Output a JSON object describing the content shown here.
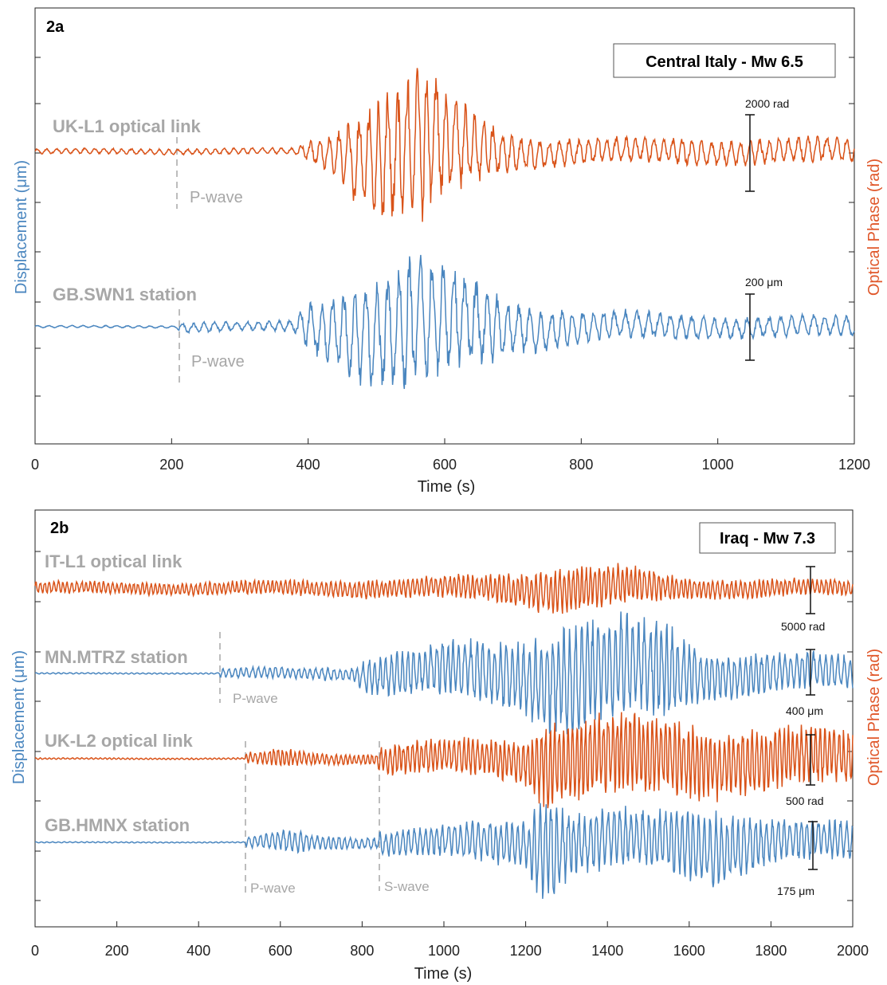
{
  "colors": {
    "optical": "#d95319",
    "station": "#4a86bf",
    "annotation": "#a7a7a7",
    "axis": "#222222"
  },
  "chart_data": [
    {
      "type": "line",
      "panel": "2a",
      "event": "Central Italy - Mw 6.5",
      "xlabel": "Time (s)",
      "ylabel_left": "Displacement (μm)",
      "ylabel_right": "Optical Phase (rad)",
      "xlim": [
        0,
        1200
      ],
      "xticks": [
        "0",
        "200",
        "400",
        "600",
        "800",
        "1000",
        "1200"
      ],
      "series": [
        {
          "name": "UK-L1 optical link",
          "kind": "optical",
          "p_wave": 205,
          "envelope": [
            [
              0,
              0.04
            ],
            [
              380,
              0.05
            ],
            [
              400,
              0.15
            ],
            [
              440,
              0.32
            ],
            [
              470,
              0.7
            ],
            [
              520,
              1.0
            ],
            [
              560,
              1.25
            ],
            [
              600,
              0.85
            ],
            [
              640,
              0.6
            ],
            [
              680,
              0.32
            ],
            [
              750,
              0.22
            ],
            [
              850,
              0.2
            ],
            [
              1000,
              0.2
            ],
            [
              1200,
              0.2
            ]
          ]
        },
        {
          "name": "GB.SWN1 station",
          "kind": "station",
          "p_wave": 210,
          "envelope": [
            [
              0,
              0.02
            ],
            [
              208,
              0.02
            ],
            [
              212,
              0.1
            ],
            [
              300,
              0.08
            ],
            [
              380,
              0.1
            ],
            [
              400,
              0.45
            ],
            [
              440,
              0.6
            ],
            [
              470,
              0.8
            ],
            [
              520,
              1.05
            ],
            [
              560,
              1.15
            ],
            [
              600,
              0.95
            ],
            [
              640,
              0.8
            ],
            [
              700,
              0.45
            ],
            [
              800,
              0.28
            ],
            [
              900,
              0.24
            ],
            [
              1000,
              0.2
            ],
            [
              1200,
              0.18
            ]
          ]
        }
      ],
      "labels": {
        "p_wave": "P-wave"
      },
      "scale_bars": [
        {
          "label": "2000 rad",
          "x": 1045
        },
        {
          "label": "200 μm",
          "x": 1045
        }
      ]
    },
    {
      "type": "line",
      "panel": "2b",
      "event": "Iraq - Mw 7.3",
      "xlabel": "Time (s)",
      "ylabel_left": "Displacement (μm)",
      "ylabel_right": "Optical Phase (rad)",
      "xlim": [
        0,
        2000
      ],
      "xticks": [
        "0",
        "200",
        "400",
        "600",
        "800",
        "1000",
        "1200",
        "1400",
        "1600",
        "1800",
        "2000"
      ],
      "series": [
        {
          "name": "IT-L1 optical link",
          "kind": "optical",
          "envelope": [
            [
              0,
              0.35
            ],
            [
              400,
              0.35
            ],
            [
              700,
              0.45
            ],
            [
              900,
              0.55
            ],
            [
              1100,
              0.7
            ],
            [
              1200,
              1.0
            ],
            [
              1300,
              1.3
            ],
            [
              1400,
              1.2
            ],
            [
              1500,
              0.9
            ],
            [
              1600,
              0.55
            ],
            [
              2000,
              0.45
            ]
          ]
        },
        {
          "name": "MN.MTRZ station",
          "kind": "station",
          "p_wave": 450,
          "envelope": [
            [
              0,
              0.02
            ],
            [
              448,
              0.02
            ],
            [
              452,
              0.15
            ],
            [
              780,
              0.2
            ],
            [
              800,
              0.55
            ],
            [
              1000,
              0.8
            ],
            [
              1200,
              1.1
            ],
            [
              1250,
              1.6
            ],
            [
              1400,
              1.6
            ],
            [
              1550,
              1.4
            ],
            [
              1650,
              0.7
            ],
            [
              2000,
              0.5
            ]
          ]
        },
        {
          "name": "UK-L2 optical link",
          "kind": "optical",
          "p_wave": 515,
          "s_wave": 840,
          "envelope": [
            [
              0,
              0.03
            ],
            [
              513,
              0.03
            ],
            [
              517,
              0.2
            ],
            [
              600,
              0.35
            ],
            [
              700,
              0.2
            ],
            [
              838,
              0.2
            ],
            [
              842,
              0.55
            ],
            [
              1100,
              0.75
            ],
            [
              1200,
              0.9
            ],
            [
              1250,
              1.6
            ],
            [
              1500,
              1.5
            ],
            [
              1800,
              1.2
            ],
            [
              2000,
              1.0
            ]
          ]
        },
        {
          "name": "GB.HMNX station",
          "kind": "station",
          "p_wave": 515,
          "s_wave": 840,
          "envelope": [
            [
              0,
              0.02
            ],
            [
              513,
              0.02
            ],
            [
              517,
              0.2
            ],
            [
              620,
              0.45
            ],
            [
              700,
              0.25
            ],
            [
              838,
              0.2
            ],
            [
              842,
              0.45
            ],
            [
              1000,
              0.6
            ],
            [
              1200,
              0.85
            ],
            [
              1240,
              1.9
            ],
            [
              1300,
              1.3
            ],
            [
              1500,
              1.0
            ],
            [
              1640,
              1.4
            ],
            [
              1800,
              0.8
            ],
            [
              2000,
              0.7
            ]
          ]
        }
      ],
      "labels": {
        "p_wave": "P-wave",
        "s_wave": "S-wave"
      },
      "scale_bars": [
        {
          "label": "5000 rad",
          "x": 1890
        },
        {
          "label": "400 μm",
          "x": 1890
        },
        {
          "label": "500 rad",
          "x": 1890
        },
        {
          "label": "175 μm",
          "x": 1890
        }
      ]
    }
  ]
}
